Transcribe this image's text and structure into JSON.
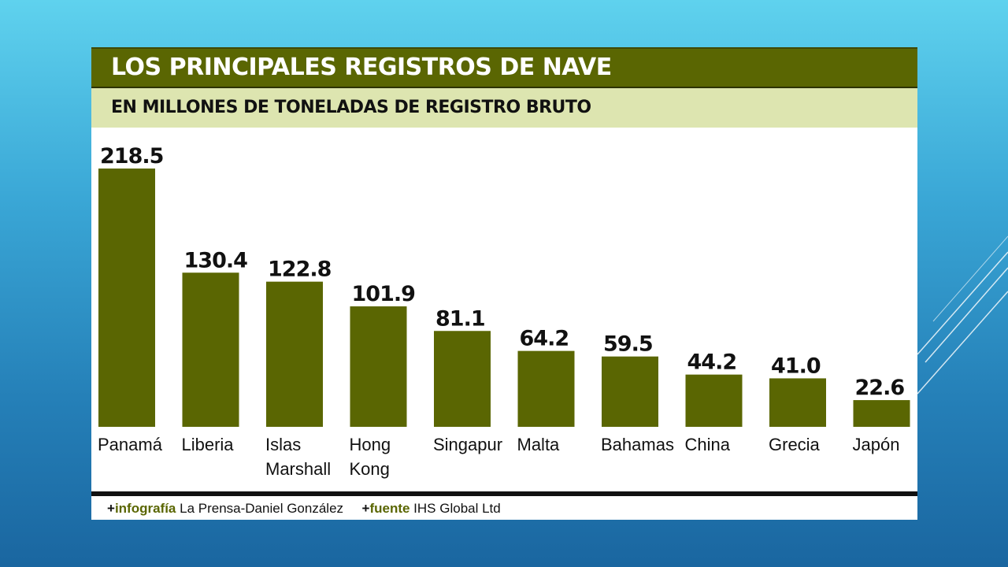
{
  "title": "LOS PRINCIPALES REGISTROS DE NAVE",
  "subtitle": "EN MILLONES DE TONELADAS DE REGISTRO BRUTO",
  "colors": {
    "bar": "#5a6602",
    "title_bg": "#5a6602",
    "subtitle_bg": "#dde5b0",
    "footer_keyword": "#5a6602"
  },
  "footer": {
    "plus1": "+",
    "label1": "infografía",
    "value1": "La Prensa-Daniel González",
    "plus2": "+",
    "label2": "fuente",
    "value2": "IHS Global Ltd"
  },
  "chart_data": {
    "type": "bar",
    "categories": [
      "Panamá",
      "Liberia",
      "Islas Marshall",
      "Hong Kong",
      "Singapur",
      "Malta",
      "Bahamas",
      "China",
      "Grecia",
      "Japón"
    ],
    "category_lines": [
      [
        "Panamá"
      ],
      [
        "Liberia"
      ],
      [
        "Islas",
        "Marshall"
      ],
      [
        "Hong",
        "Kong"
      ],
      [
        "Singapur"
      ],
      [
        "Malta"
      ],
      [
        "Bahamas"
      ],
      [
        "China"
      ],
      [
        "Grecia"
      ],
      [
        "Japón"
      ]
    ],
    "values": [
      218.5,
      130.4,
      122.8,
      101.9,
      81.1,
      64.2,
      59.5,
      44.2,
      41.0,
      22.6
    ],
    "value_labels": [
      "218.5",
      "130.4",
      "122.8",
      "101.9",
      "81.1",
      "64.2",
      "59.5",
      "44.2",
      "41.0",
      "22.6"
    ],
    "ylim": [
      0,
      218.5
    ],
    "grid": false,
    "legend": "none"
  }
}
